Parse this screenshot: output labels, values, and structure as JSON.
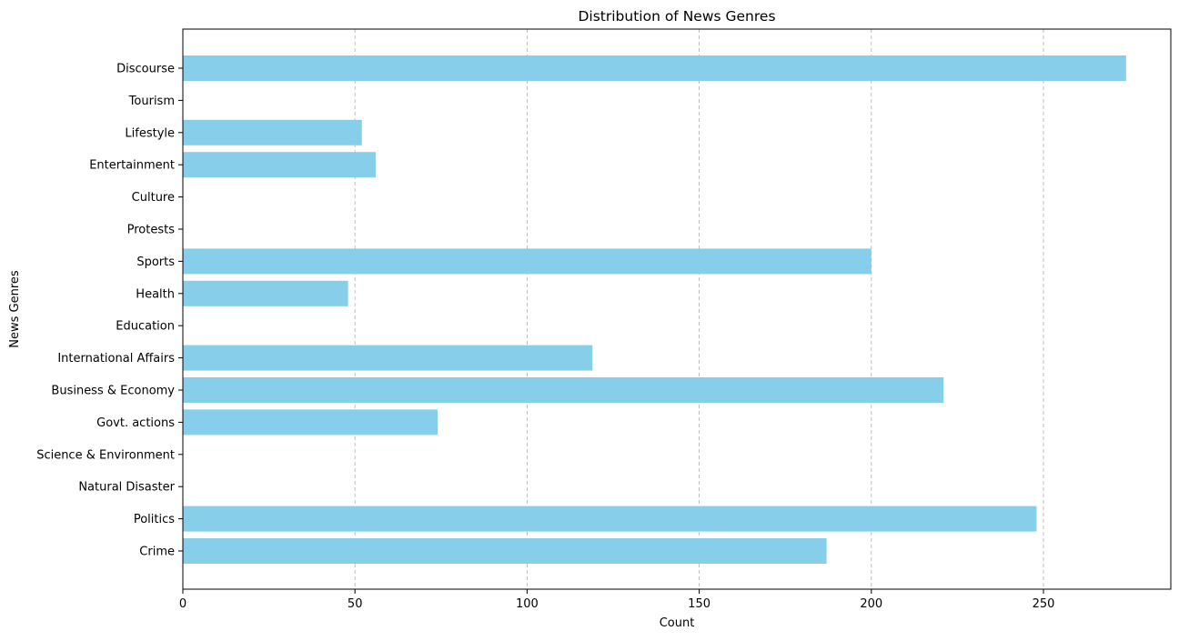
{
  "chart_data": {
    "type": "bar",
    "orientation": "horizontal",
    "title": "Distribution of News Genres",
    "xlabel": "Count",
    "ylabel": "News Genres",
    "categories": [
      "Crime",
      "Politics",
      "Natural Disaster",
      "Science & Environment",
      "Govt. actions",
      "Business & Economy",
      "International Affairs",
      "Education",
      "Health",
      "Sports",
      "Protests",
      "Culture",
      "Entertainment",
      "Lifestyle",
      "Tourism",
      "Discourse"
    ],
    "values": [
      187,
      248,
      0,
      0,
      74,
      221,
      119,
      0,
      48,
      200,
      0,
      0,
      56,
      52,
      0,
      274
    ],
    "xlim": [
      0,
      287
    ],
    "xticks": [
      0,
      50,
      100,
      150,
      200,
      250
    ],
    "xtick_labels": [
      "0",
      "50",
      "100",
      "150",
      "200",
      "250"
    ],
    "grid": "x-dashed",
    "bar_color": "#87ceeb",
    "grid_color": "#b0b0b0"
  }
}
